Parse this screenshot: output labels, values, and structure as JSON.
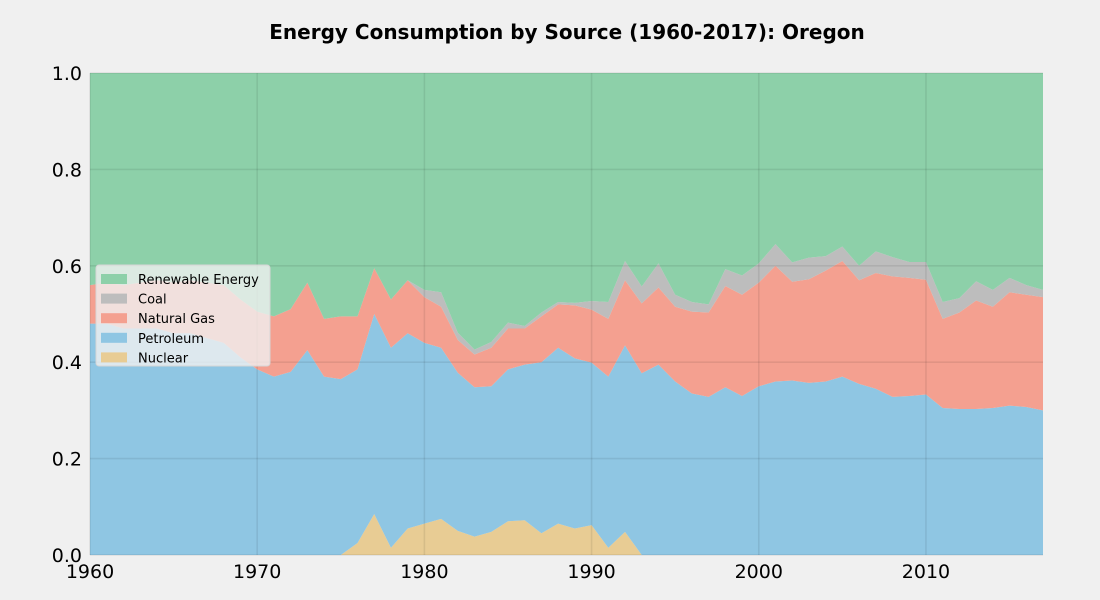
{
  "chart_data": {
    "type": "area",
    "stacked": true,
    "normalized": true,
    "title": "Energy Consumption by Source (1960-2017): Oregon",
    "xlabel": "",
    "ylabel": "",
    "xlim": [
      1960,
      2017
    ],
    "ylim": [
      0,
      1
    ],
    "x_ticks": [
      1960,
      1970,
      1980,
      1990,
      2000,
      2010
    ],
    "y_ticks": [
      "0.0",
      "0.2",
      "0.4",
      "0.6",
      "0.8",
      "1.0"
    ],
    "grid": true,
    "legend_position": "center-left",
    "legend_order": [
      "Renewable Energy",
      "Coal",
      "Natural Gas",
      "Petroleum",
      "Nuclear"
    ],
    "x": [
      1960,
      1961,
      1962,
      1963,
      1964,
      1965,
      1966,
      1967,
      1968,
      1969,
      1970,
      1971,
      1972,
      1973,
      1974,
      1975,
      1976,
      1977,
      1978,
      1979,
      1980,
      1981,
      1982,
      1983,
      1984,
      1985,
      1986,
      1987,
      1988,
      1989,
      1990,
      1991,
      1992,
      1993,
      1994,
      1995,
      1996,
      1997,
      1998,
      1999,
      2000,
      2001,
      2002,
      2003,
      2004,
      2005,
      2006,
      2007,
      2008,
      2009,
      2010,
      2011,
      2012,
      2013,
      2014,
      2015,
      2016,
      2017
    ],
    "series": [
      {
        "name": "Nuclear",
        "color": "#e8cc94",
        "values": [
          0,
          0,
          0,
          0,
          0,
          0,
          0,
          0,
          0,
          0,
          0,
          0,
          0,
          0,
          0,
          0,
          0.025,
          0.085,
          0.015,
          0.055,
          0.065,
          0.075,
          0.05,
          0.038,
          0.048,
          0.07,
          0.072,
          0.045,
          0.065,
          0.055,
          0.062,
          0.015,
          0.048,
          0,
          0,
          0,
          0,
          0,
          0,
          0,
          0,
          0,
          0,
          0,
          0,
          0,
          0,
          0,
          0,
          0,
          0,
          0,
          0,
          0,
          0,
          0,
          0,
          0
        ]
      },
      {
        "name": "Petroleum",
        "color": "#8fc6e3",
        "values": [
          0.48,
          0.48,
          0.47,
          0.47,
          0.47,
          0.46,
          0.46,
          0.45,
          0.44,
          0.41,
          0.385,
          0.37,
          0.38,
          0.425,
          0.37,
          0.365,
          0.36,
          0.415,
          0.415,
          0.405,
          0.375,
          0.355,
          0.328,
          0.31,
          0.302,
          0.315,
          0.323,
          0.355,
          0.365,
          0.353,
          0.337,
          0.355,
          0.387,
          0.377,
          0.395,
          0.36,
          0.335,
          0.328,
          0.348,
          0.33,
          0.35,
          0.36,
          0.362,
          0.357,
          0.36,
          0.37,
          0.355,
          0.345,
          0.328,
          0.33,
          0.333,
          0.305,
          0.303,
          0.303,
          0.305,
          0.31,
          0.307,
          0.3
        ]
      },
      {
        "name": "Natural Gas",
        "color": "#f4a090",
        "values": [
          0.08,
          0.085,
          0.09,
          0.095,
          0.1,
          0.105,
          0.11,
          0.115,
          0.12,
          0.12,
          0.12,
          0.125,
          0.13,
          0.14,
          0.12,
          0.13,
          0.11,
          0.095,
          0.1,
          0.11,
          0.095,
          0.085,
          0.068,
          0.068,
          0.08,
          0.085,
          0.075,
          0.095,
          0.09,
          0.11,
          0.11,
          0.12,
          0.135,
          0.145,
          0.16,
          0.155,
          0.17,
          0.175,
          0.21,
          0.21,
          0.215,
          0.24,
          0.205,
          0.215,
          0.23,
          0.24,
          0.215,
          0.24,
          0.25,
          0.245,
          0.238,
          0.185,
          0.2,
          0.225,
          0.21,
          0.235,
          0.233,
          0.235
        ]
      },
      {
        "name": "Coal",
        "color": "#bdbdbd",
        "values": [
          0,
          0,
          0,
          0,
          0,
          0,
          0,
          0,
          0,
          0,
          0,
          0,
          0,
          0,
          0,
          0,
          0,
          0,
          0,
          0,
          0.015,
          0.03,
          0.015,
          0.01,
          0.012,
          0.012,
          0.005,
          0.008,
          0.005,
          0.005,
          0.018,
          0.035,
          0.04,
          0.035,
          0.05,
          0.025,
          0.02,
          0.017,
          0.035,
          0.04,
          0.04,
          0.045,
          0.04,
          0.045,
          0.03,
          0.03,
          0.03,
          0.045,
          0.04,
          0.033,
          0.037,
          0.035,
          0.03,
          0.04,
          0.035,
          0.03,
          0.02,
          0.015
        ]
      },
      {
        "name": "Renewable Energy",
        "color": "#8dd0a9",
        "values": [
          0.44,
          0.435,
          0.44,
          0.435,
          0.43,
          0.435,
          0.43,
          0.435,
          0.44,
          0.47,
          0.495,
          0.505,
          0.49,
          0.435,
          0.51,
          0.505,
          0.505,
          0.405,
          0.47,
          0.43,
          0.45,
          0.455,
          0.539,
          0.574,
          0.558,
          0.518,
          0.525,
          0.497,
          0.475,
          0.477,
          0.473,
          0.475,
          0.39,
          0.443,
          0.395,
          0.46,
          0.475,
          0.48,
          0.407,
          0.42,
          0.395,
          0.355,
          0.393,
          0.383,
          0.38,
          0.36,
          0.4,
          0.37,
          0.382,
          0.392,
          0.392,
          0.475,
          0.467,
          0.432,
          0.45,
          0.425,
          0.44,
          0.45
        ]
      }
    ]
  }
}
